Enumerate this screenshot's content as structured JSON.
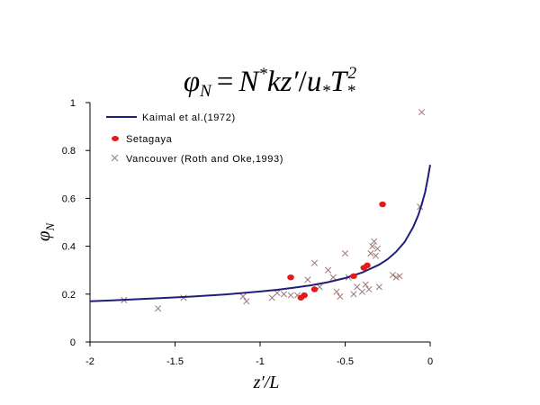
{
  "chart_data": {
    "type": "scatter",
    "title": "φN = N*kz′/u*T*²",
    "title_parts": {
      "phi": "φ",
      "phi_sub": "N",
      "eq": "=",
      "n": "N",
      "n_sup": "*",
      "kz": "kz′",
      "slash": "/",
      "u": "u",
      "u_sub": "*",
      "t": "T",
      "t_sub": "*",
      "t_sup": "2"
    },
    "xlabel": "z′/L",
    "ylabel": {
      "main": "φ",
      "sub": "N"
    },
    "xlim": [
      -2,
      0
    ],
    "ylim": [
      0,
      1
    ],
    "x_ticks": [
      {
        "value": -2,
        "label": "-2"
      },
      {
        "value": -1.5,
        "label": "-1.5"
      },
      {
        "value": -1,
        "label": "-1"
      },
      {
        "value": -0.5,
        "label": "-0.5"
      },
      {
        "value": 0,
        "label": "0"
      }
    ],
    "y_ticks": [
      {
        "value": 0,
        "label": "0"
      },
      {
        "value": 0.2,
        "label": "0.2"
      },
      {
        "value": 0.4,
        "label": "0.4"
      },
      {
        "value": 0.6,
        "label": "0.6"
      },
      {
        "value": 0.8,
        "label": "0.8"
      },
      {
        "value": 1,
        "label": "1"
      }
    ],
    "grid": false,
    "legend_position": "top-left",
    "series": [
      {
        "name": "Kaimal et al.(1972)",
        "kind": "line",
        "color": "#1f1f7a",
        "x": [
          -2.0,
          -1.8,
          -1.6,
          -1.4,
          -1.2,
          -1.0,
          -0.9,
          -0.8,
          -0.7,
          -0.6,
          -0.5,
          -0.4,
          -0.3,
          -0.25,
          -0.2,
          -0.15,
          -0.1,
          -0.07,
          -0.05,
          -0.03,
          -0.015,
          0.0
        ],
        "y": [
          0.17,
          0.176,
          0.183,
          0.19,
          0.199,
          0.211,
          0.218,
          0.227,
          0.237,
          0.25,
          0.267,
          0.29,
          0.323,
          0.346,
          0.377,
          0.418,
          0.48,
          0.53,
          0.575,
          0.625,
          0.68,
          0.74
        ]
      },
      {
        "name": "Setagaya",
        "kind": "marker",
        "marker": "filled-ellipse",
        "color": "#e31b1b",
        "x": [
          -0.82,
          -0.76,
          -0.74,
          -0.68,
          -0.45,
          -0.39,
          -0.37,
          -0.28
        ],
        "y": [
          0.27,
          0.185,
          0.195,
          0.22,
          0.275,
          0.31,
          0.32,
          0.575
        ]
      },
      {
        "name": "Vancouver (Roth and Oke,1993)",
        "kind": "marker",
        "marker": "x",
        "color": "#a07878",
        "x": [
          -1.8,
          -1.6,
          -1.45,
          -1.1,
          -1.08,
          -0.93,
          -0.9,
          -0.86,
          -0.82,
          -0.78,
          -0.72,
          -0.68,
          -0.65,
          -0.6,
          -0.57,
          -0.55,
          -0.53,
          -0.5,
          -0.48,
          -0.45,
          -0.43,
          -0.4,
          -0.38,
          -0.36,
          -0.35,
          -0.34,
          -0.33,
          -0.32,
          -0.31,
          -0.3,
          -0.22,
          -0.2,
          -0.18,
          -0.06,
          -0.05
        ],
        "y": [
          0.175,
          0.14,
          0.185,
          0.19,
          0.17,
          0.185,
          0.205,
          0.2,
          0.195,
          0.195,
          0.26,
          0.33,
          0.23,
          0.3,
          0.27,
          0.21,
          0.19,
          0.37,
          0.27,
          0.2,
          0.23,
          0.21,
          0.24,
          0.22,
          0.37,
          0.4,
          0.42,
          0.36,
          0.39,
          0.23,
          0.28,
          0.27,
          0.275,
          0.565,
          0.96
        ]
      }
    ]
  }
}
